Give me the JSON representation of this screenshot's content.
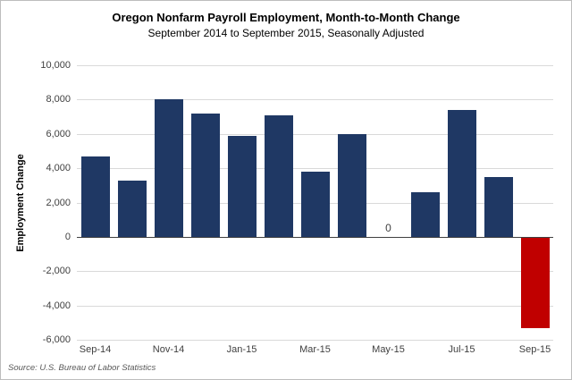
{
  "chart_data": {
    "type": "bar",
    "title": "Oregon Nonfarm Payroll Employment, Month-to-Month Change",
    "subtitle": "September 2014 to September 2015, Seasonally Adjusted",
    "ylabel": "Employment Change",
    "xlabel": "",
    "ylim": [
      -6000,
      10000
    ],
    "ytick_interval": 2000,
    "yticks": [
      10000,
      8000,
      6000,
      4000,
      2000,
      0,
      -2000,
      -4000,
      -6000
    ],
    "ytick_labels": [
      "10,000",
      "8,000",
      "6,000",
      "4,000",
      "2,000",
      "0",
      "-2,000",
      "-4,000",
      "-6,000"
    ],
    "categories": [
      "Sep-14",
      "Oct-14",
      "Nov-14",
      "Dec-14",
      "Jan-15",
      "Feb-15",
      "Mar-15",
      "Apr-15",
      "May-15",
      "Jun-15",
      "Jul-15",
      "Aug-15",
      "Sep-15"
    ],
    "xtick_labels": [
      "Sep-14",
      "Nov-14",
      "Jan-15",
      "Mar-15",
      "May-15",
      "Jul-15",
      "Sep-15"
    ],
    "values": [
      4700,
      3300,
      8000,
      7200,
      5900,
      7100,
      3800,
      6000,
      0,
      2600,
      7400,
      3500,
      -5300
    ],
    "annotations": [
      {
        "category": "May-15",
        "text": "0"
      }
    ],
    "bar_color": "#1F3864",
    "negative_color": "#C00000",
    "grid": true,
    "legend": "none"
  },
  "footer": {
    "source": "Source: U.S. Bureau of Labor Statistics"
  }
}
